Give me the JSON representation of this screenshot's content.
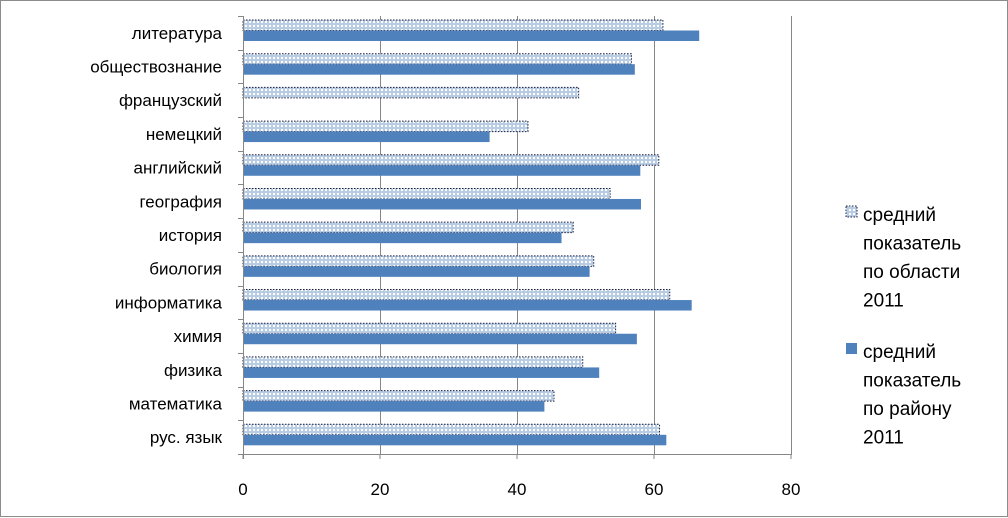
{
  "chart_data": {
    "type": "bar",
    "orientation": "horizontal",
    "categories": [
      "литература",
      "обществознание",
      "французский",
      "немецкий",
      "английский",
      "география",
      "история",
      "биология",
      "информатика",
      "химия",
      "физика",
      "математика",
      "рус. язык"
    ],
    "series": [
      {
        "name_lines": [
          "средний",
          "показатель",
          "по области",
          "2011"
        ],
        "style": "dotted-light",
        "color": "#B8CCE4",
        "values": [
          61.3,
          56.7,
          49,
          41.6,
          60.7,
          53.6,
          48.2,
          51.2,
          62.3,
          54.4,
          49.6,
          45.4,
          60.8
        ]
      },
      {
        "name_lines": [
          "средний",
          "показатель",
          "по району",
          "2011"
        ],
        "style": "solid",
        "color": "#4F81BD",
        "values": [
          66.6,
          57.2,
          null,
          36,
          58,
          58.1,
          46.5,
          50.6,
          65.5,
          57.5,
          52,
          44,
          61.8
        ]
      }
    ],
    "xlim": [
      0,
      80
    ],
    "x_ticks": [
      "0",
      "20",
      "40",
      "60",
      "80"
    ],
    "grid": true,
    "legend_position": "right"
  }
}
